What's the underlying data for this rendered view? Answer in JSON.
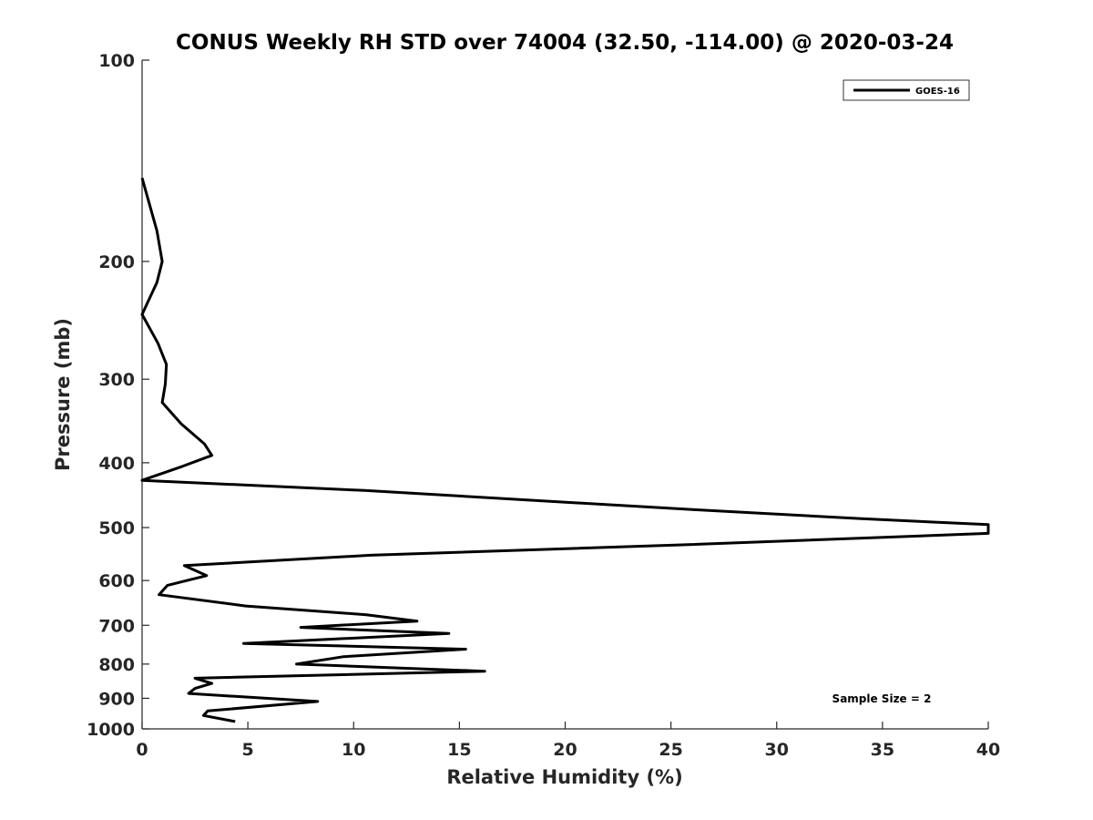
{
  "chart_data": {
    "type": "line",
    "title": "CONUS Weekly RH STD over 74004 (32.50, -114.00) @ 2020-03-24",
    "xlabel": "Relative Humidity (%)",
    "ylabel": "Pressure (mb)",
    "xlim": [
      0,
      40
    ],
    "ylim": [
      100,
      1000
    ],
    "y_scale": "log",
    "y_reversed": true,
    "x_ticks": [
      "0",
      "5",
      "10",
      "15",
      "20",
      "25",
      "30",
      "35",
      "40"
    ],
    "y_ticks": [
      "100",
      "200",
      "300",
      "400",
      "500",
      "600",
      "700",
      "800",
      "900",
      "1000"
    ],
    "grid": false,
    "legend": {
      "position": "top-right",
      "entries": [
        "GOES-16"
      ]
    },
    "annotation": "Sample Size = 2",
    "series": [
      {
        "name": "GOES-16",
        "color": "#000000",
        "points": [
          [
            0.0,
            150
          ],
          [
            0.7,
            180
          ],
          [
            0.95,
            200
          ],
          [
            0.7,
            215
          ],
          [
            0.0,
            240
          ],
          [
            0.75,
            265
          ],
          [
            1.15,
            285
          ],
          [
            1.1,
            305
          ],
          [
            0.95,
            325
          ],
          [
            1.85,
            350
          ],
          [
            2.95,
            375
          ],
          [
            3.3,
            390
          ],
          [
            1.9,
            405
          ],
          [
            0.0,
            425
          ],
          [
            10.5,
            440
          ],
          [
            26.0,
            470
          ],
          [
            34.0,
            485
          ],
          [
            40.0,
            495
          ],
          [
            40.0,
            510
          ],
          [
            26.0,
            530
          ],
          [
            10.8,
            550
          ],
          [
            2.0,
            570
          ],
          [
            3.05,
            590
          ],
          [
            1.2,
            610
          ],
          [
            0.8,
            630
          ],
          [
            4.9,
            655
          ],
          [
            10.6,
            675
          ],
          [
            13.0,
            690
          ],
          [
            7.5,
            705
          ],
          [
            14.5,
            720
          ],
          [
            4.8,
            745
          ],
          [
            15.3,
            760
          ],
          [
            9.5,
            780
          ],
          [
            7.3,
            800
          ],
          [
            16.2,
            820
          ],
          [
            2.5,
            840
          ],
          [
            3.3,
            855
          ],
          [
            2.5,
            870
          ],
          [
            2.2,
            885
          ],
          [
            8.3,
            910
          ],
          [
            3.1,
            940
          ],
          [
            2.9,
            955
          ],
          [
            4.4,
            975
          ]
        ]
      }
    ]
  }
}
